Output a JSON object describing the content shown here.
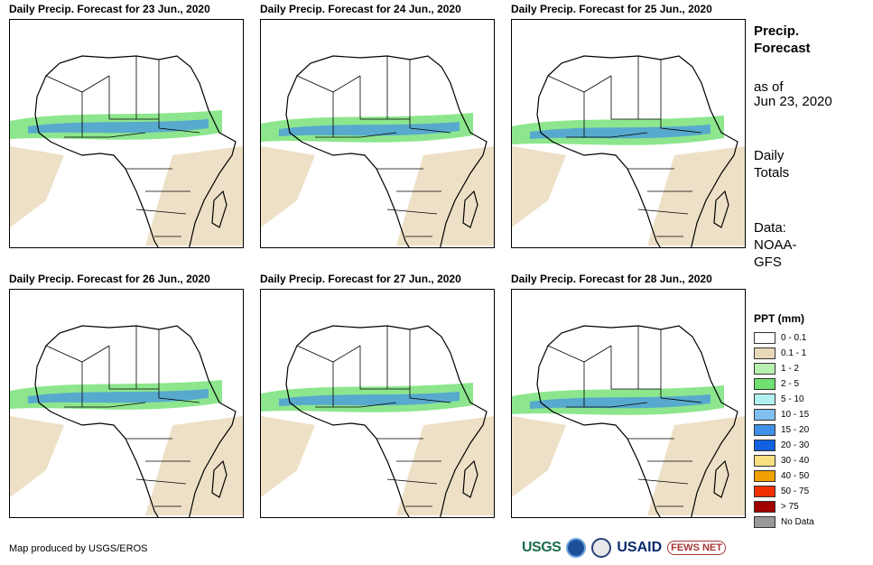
{
  "panels": [
    {
      "title": "Daily Precip. Forecast for 23 Jun., 2020"
    },
    {
      "title": "Daily Precip. Forecast for 24 Jun., 2020"
    },
    {
      "title": "Daily Precip. Forecast for 25 Jun., 2020"
    },
    {
      "title": "Daily Precip. Forecast for 26 Jun., 2020"
    },
    {
      "title": "Daily Precip. Forecast for 27 Jun., 2020"
    },
    {
      "title": "Daily Precip. Forecast for 28 Jun., 2020"
    }
  ],
  "side": {
    "title": "Precip. Forecast",
    "as_of_label": "as of",
    "as_of_date": "Jun 23, 2020",
    "totals": "Daily Totals",
    "data_label": "Data:",
    "data_source": "NOAA-GFS"
  },
  "legend": {
    "title": "PPT (mm)",
    "items": [
      {
        "label": "0 - 0.1",
        "color": "#ffffff"
      },
      {
        "label": "0.1 - 1",
        "color": "#e8d8b8"
      },
      {
        "label": "1 - 2",
        "color": "#b8f0b0"
      },
      {
        "label": "2 - 5",
        "color": "#70e070"
      },
      {
        "label": "5 - 10",
        "color": "#b0f0f0"
      },
      {
        "label": "10 - 15",
        "color": "#80c0f0"
      },
      {
        "label": "15 - 20",
        "color": "#4090e8"
      },
      {
        "label": "20 - 30",
        "color": "#1060e0"
      },
      {
        "label": "30 - 40",
        "color": "#f8e080"
      },
      {
        "label": "40 - 50",
        "color": "#f0a000"
      },
      {
        "label": "50 - 75",
        "color": "#f03000"
      },
      {
        "label": "> 75",
        "color": "#a00000"
      },
      {
        "label": "No Data",
        "color": "#999999"
      }
    ]
  },
  "credit": "Map produced by USGS/EROS",
  "logos": {
    "usgs": "USGS",
    "usaid": "USAID",
    "fews": "FEWS NET"
  }
}
